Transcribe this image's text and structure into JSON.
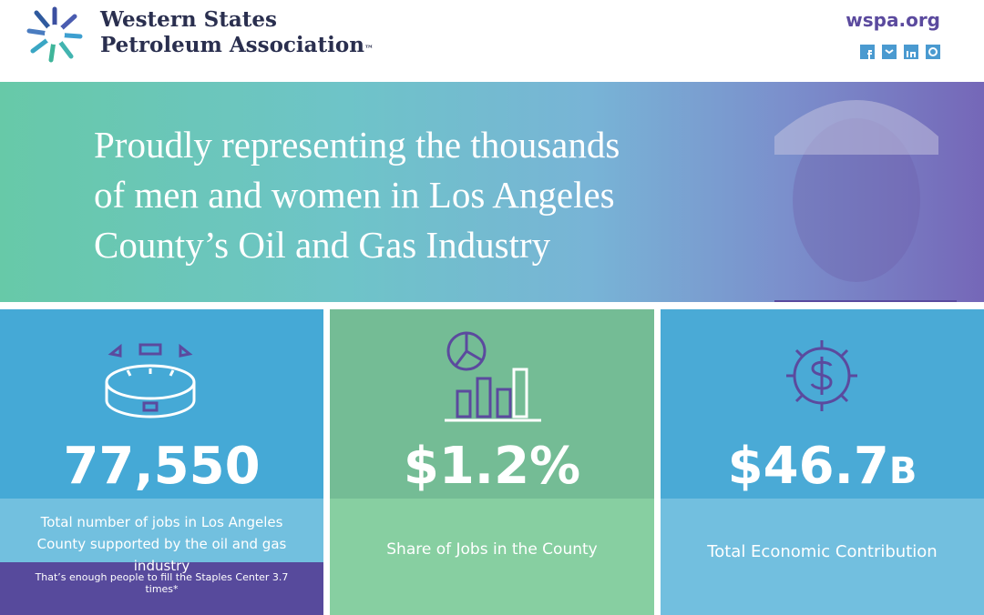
{
  "header": {
    "logo_line1": "Western States",
    "logo_line2": "Petroleum Association",
    "trademark": "™",
    "url": "wspa.org"
  },
  "hero": {
    "lines": [
      "Proudly representing the thousands",
      "of men and women in Los Angeles",
      "County’s Oil and Gas Industry"
    ]
  },
  "stats": [
    {
      "value": "77,550",
      "label": "Total number of jobs in Los Angeles County supported by the oil and gas industry",
      "note": "That’s enough people to fill the Staples Center 3.7 times*"
    },
    {
      "value": "$1.2%",
      "label": "Share of Jobs in the County"
    },
    {
      "value": "$46.7",
      "suffix": "B",
      "label": "Total Economic Contribution"
    }
  ]
}
